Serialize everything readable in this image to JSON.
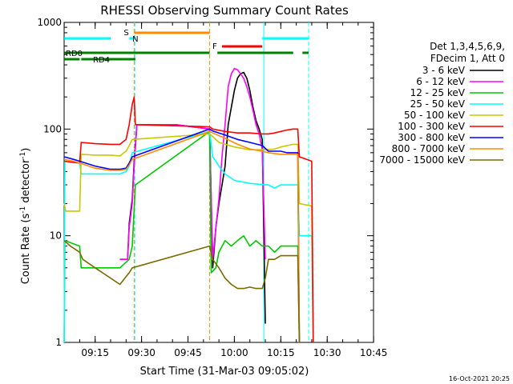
{
  "chart_data": {
    "type": "line",
    "title": "RHESSI Observing Summary Count Rates",
    "xlabel": "Start Time (31-Mar-03 09:05:02)",
    "ylabel": "Count Rate (s⁻¹ detector⁻¹)",
    "ylabel_parts": {
      "pre": "Count Rate (s",
      "sup1": "-1",
      "mid": " detector",
      "sup2": "-1",
      "post": ")"
    },
    "yscale": "log",
    "ylim": [
      1,
      1000
    ],
    "xlim_minutes": [
      -0.03,
      99.97
    ],
    "y_ticks": [
      {
        "v": 1,
        "label": "1"
      },
      {
        "v": 10,
        "label": "10"
      },
      {
        "v": 100,
        "label": "100"
      },
      {
        "v": 1000,
        "label": "1000"
      }
    ],
    "x_ticks": [
      {
        "m": 10,
        "label": "09:15"
      },
      {
        "m": 25,
        "label": "09:30"
      },
      {
        "m": 40,
        "label": "09:45"
      },
      {
        "m": 55,
        "label": "10:00"
      },
      {
        "m": 70,
        "label": "10:15"
      },
      {
        "m": 85,
        "label": "10:30"
      },
      {
        "m": 100,
        "label": "10:45"
      }
    ],
    "legend_header": [
      "Det 1,3,4,5,6,9,",
      "FDecim 1, Att 0"
    ],
    "timestamp": "16-Oct-2021 20:25",
    "series": [
      {
        "name": "3 - 6 keV",
        "color": "#000000",
        "points": [
          [
            18,
            6
          ],
          [
            20.5,
            6
          ],
          [
            21,
            13
          ],
          [
            22,
            22
          ],
          [
            22.6,
            50
          ],
          [
            23.5,
            110
          ],
          [
            25,
            110
          ],
          [
            36,
            110
          ],
          [
            47,
            100
          ],
          [
            48,
            5
          ],
          [
            49,
            12
          ],
          [
            50,
            20
          ],
          [
            51,
            30
          ],
          [
            52,
            45
          ],
          [
            53,
            110
          ],
          [
            54,
            160
          ],
          [
            55,
            230
          ],
          [
            56,
            300
          ],
          [
            57,
            330
          ],
          [
            58,
            340
          ],
          [
            59,
            300
          ],
          [
            60,
            230
          ],
          [
            61,
            160
          ],
          [
            62,
            120
          ],
          [
            63,
            100
          ],
          [
            64,
            80
          ],
          [
            65,
            1.5
          ]
        ]
      },
      {
        "name": "6 - 12 keV",
        "color": "#ff00ff",
        "points": [
          [
            18,
            6
          ],
          [
            20.5,
            6
          ],
          [
            21,
            12
          ],
          [
            22,
            20
          ],
          [
            22.6,
            45
          ],
          [
            23.5,
            110
          ],
          [
            25,
            110
          ],
          [
            36,
            110
          ],
          [
            47,
            100
          ],
          [
            48,
            6
          ],
          [
            49,
            12
          ],
          [
            50,
            22
          ],
          [
            51,
            55
          ],
          [
            52,
            110
          ],
          [
            53,
            250
          ],
          [
            54,
            330
          ],
          [
            55,
            370
          ],
          [
            56,
            360
          ],
          [
            57,
            330
          ],
          [
            58,
            300
          ],
          [
            59,
            250
          ],
          [
            60,
            200
          ],
          [
            61,
            150
          ],
          [
            62,
            110
          ],
          [
            63,
            90
          ],
          [
            64,
            65
          ],
          [
            65,
            6
          ]
        ]
      },
      {
        "name": "12 - 25 keV",
        "color": "#00c800",
        "points": [
          [
            0,
            0
          ],
          [
            0.2,
            9
          ],
          [
            5,
            8
          ],
          [
            5.5,
            5
          ],
          [
            18,
            5
          ],
          [
            21,
            6
          ],
          [
            22,
            8
          ],
          [
            23,
            30
          ],
          [
            47,
            95
          ],
          [
            47.5,
            4.5
          ],
          [
            49,
            5
          ],
          [
            50,
            7
          ],
          [
            52,
            9
          ],
          [
            54,
            8
          ],
          [
            56,
            9
          ],
          [
            58,
            10
          ],
          [
            60,
            8
          ],
          [
            62,
            9
          ],
          [
            64,
            8
          ],
          [
            65,
            8
          ],
          [
            66,
            8
          ],
          [
            68,
            7
          ],
          [
            70,
            8
          ],
          [
            72,
            8
          ],
          [
            74,
            8
          ],
          [
            75.5,
            8
          ],
          [
            76,
            0
          ]
        ]
      },
      {
        "name": "25 - 50 keV",
        "color": "#00ffff",
        "points": [
          [
            0,
            0
          ],
          [
            0.2,
            50
          ],
          [
            5,
            48
          ],
          [
            5.5,
            38
          ],
          [
            10,
            38
          ],
          [
            15,
            38
          ],
          [
            18,
            38
          ],
          [
            20,
            40
          ],
          [
            21,
            45
          ],
          [
            22,
            60
          ],
          [
            47,
            95
          ],
          [
            48,
            55
          ],
          [
            49,
            50
          ],
          [
            50,
            45
          ],
          [
            52,
            38
          ],
          [
            55,
            33
          ],
          [
            60,
            31
          ],
          [
            65,
            30
          ],
          [
            66,
            30
          ],
          [
            68,
            28
          ],
          [
            70,
            30
          ],
          [
            72,
            30
          ],
          [
            74,
            30
          ],
          [
            75.5,
            30
          ],
          [
            76,
            10
          ],
          [
            80,
            10
          ],
          [
            80.5,
            0
          ]
        ]
      },
      {
        "name": "50 - 100 keV",
        "color": "#c8c800",
        "points": [
          [
            0,
            20
          ],
          [
            0.5,
            17
          ],
          [
            5,
            17
          ],
          [
            5.5,
            58
          ],
          [
            10,
            57
          ],
          [
            15,
            57
          ],
          [
            18,
            56
          ],
          [
            20,
            62
          ],
          [
            21,
            70
          ],
          [
            22,
            80
          ],
          [
            47,
            90
          ],
          [
            48,
            85
          ],
          [
            50,
            75
          ],
          [
            55,
            68
          ],
          [
            60,
            64
          ],
          [
            65,
            64
          ],
          [
            68,
            65
          ],
          [
            70,
            68
          ],
          [
            72,
            70
          ],
          [
            74,
            72
          ],
          [
            75.5,
            72
          ],
          [
            76,
            20
          ],
          [
            80,
            19
          ],
          [
            80.5,
            0
          ]
        ]
      },
      {
        "name": "100 - 300 keV",
        "color": "#ff0000",
        "points": [
          [
            0,
            50
          ],
          [
            2,
            49
          ],
          [
            5,
            48
          ],
          [
            5.5,
            75
          ],
          [
            10,
            73
          ],
          [
            15,
            72
          ],
          [
            18,
            72
          ],
          [
            20,
            80
          ],
          [
            21,
            110
          ],
          [
            22,
            170
          ],
          [
            22.6,
            200
          ],
          [
            23,
            110
          ],
          [
            47,
            105
          ],
          [
            48,
            100
          ],
          [
            52,
            95
          ],
          [
            56,
            92
          ],
          [
            60,
            92
          ],
          [
            64,
            90
          ],
          [
            66,
            90
          ],
          [
            68,
            92
          ],
          [
            70,
            95
          ],
          [
            72,
            98
          ],
          [
            74,
            100
          ],
          [
            75.5,
            100
          ],
          [
            76,
            55
          ],
          [
            80,
            50
          ],
          [
            80.5,
            0
          ]
        ]
      },
      {
        "name": "300 - 800 keV",
        "color": "#0000ff",
        "points": [
          [
            0,
            55
          ],
          [
            3,
            52
          ],
          [
            5,
            50
          ],
          [
            10,
            45
          ],
          [
            15,
            42
          ],
          [
            18,
            42
          ],
          [
            20,
            43
          ],
          [
            21,
            48
          ],
          [
            22,
            55
          ],
          [
            47,
            100
          ],
          [
            48,
            96
          ],
          [
            52,
            88
          ],
          [
            56,
            80
          ],
          [
            60,
            75
          ],
          [
            64,
            70
          ],
          [
            66,
            62
          ],
          [
            68,
            62
          ],
          [
            70,
            62
          ],
          [
            72,
            60
          ],
          [
            74,
            60
          ],
          [
            75.5,
            60
          ],
          [
            76,
            0
          ]
        ]
      },
      {
        "name": "800 - 7000 keV",
        "color": "#ff8c00",
        "points": [
          [
            0,
            52
          ],
          [
            3,
            50
          ],
          [
            5,
            48
          ],
          [
            10,
            43
          ],
          [
            15,
            41
          ],
          [
            18,
            41
          ],
          [
            20,
            42
          ],
          [
            21,
            46
          ],
          [
            22,
            52
          ],
          [
            47,
            95
          ],
          [
            48,
            92
          ],
          [
            52,
            82
          ],
          [
            56,
            72
          ],
          [
            60,
            65
          ],
          [
            64,
            62
          ],
          [
            66,
            60
          ],
          [
            68,
            59
          ],
          [
            70,
            58
          ],
          [
            72,
            58
          ],
          [
            74,
            58
          ],
          [
            75.5,
            58
          ],
          [
            76,
            0
          ]
        ]
      },
      {
        "name": "7000 - 15000 keV",
        "color": "#7a6a00",
        "points": [
          [
            0,
            9
          ],
          [
            2,
            8
          ],
          [
            5,
            7
          ],
          [
            6,
            6
          ],
          [
            10,
            5
          ],
          [
            15,
            4
          ],
          [
            18,
            3.5
          ],
          [
            21,
            4.5
          ],
          [
            22,
            5
          ],
          [
            47,
            8
          ],
          [
            48,
            6
          ],
          [
            50,
            5
          ],
          [
            52,
            4
          ],
          [
            54,
            3.5
          ],
          [
            56,
            3.2
          ],
          [
            58,
            3.2
          ],
          [
            60,
            3.3
          ],
          [
            62,
            3.2
          ],
          [
            64,
            3.2
          ],
          [
            65,
            4
          ],
          [
            66,
            6
          ],
          [
            68,
            6
          ],
          [
            70,
            6.5
          ],
          [
            72,
            6.5
          ],
          [
            74,
            6.5
          ],
          [
            75.5,
            6.5
          ],
          [
            76,
            0
          ]
        ]
      }
    ],
    "flag_bars": [
      {
        "label": "RD0",
        "color": "#008000",
        "row": "rd0",
        "segments": [
          [
            0,
            47
          ],
          [
            49.5,
            74
          ],
          [
            77,
            79
          ]
        ]
      },
      {
        "label": "RD4",
        "color": "#008000",
        "row": "rd4",
        "segments": [
          [
            0,
            5
          ],
          [
            5.5,
            23
          ]
        ]
      },
      {
        "label": "N",
        "color": "#00ffff",
        "row": "n",
        "segments": [
          [
            0,
            15
          ],
          [
            21,
            23
          ],
          [
            64,
            79
          ]
        ]
      },
      {
        "label": "S",
        "color": "#ff8c00",
        "row": "s",
        "segments": [
          [
            22.6,
            47
          ]
        ]
      },
      {
        "label": "F",
        "color": "#ff0000",
        "row": "f",
        "segments": [
          [
            51,
            64
          ]
        ]
      }
    ],
    "vlines": [
      {
        "m": 22.6,
        "color": "#ff8c00",
        "dash": true
      },
      {
        "m": 22.8,
        "color": "#00ffff",
        "dash": true
      },
      {
        "m": 47,
        "color": "#ff8c00",
        "dash": true
      },
      {
        "m": 64.5,
        "color": "#00ffff",
        "dash": false
      },
      {
        "m": 79,
        "color": "#00ffff",
        "dash": true
      }
    ],
    "grid": false,
    "legend_position": "right"
  }
}
